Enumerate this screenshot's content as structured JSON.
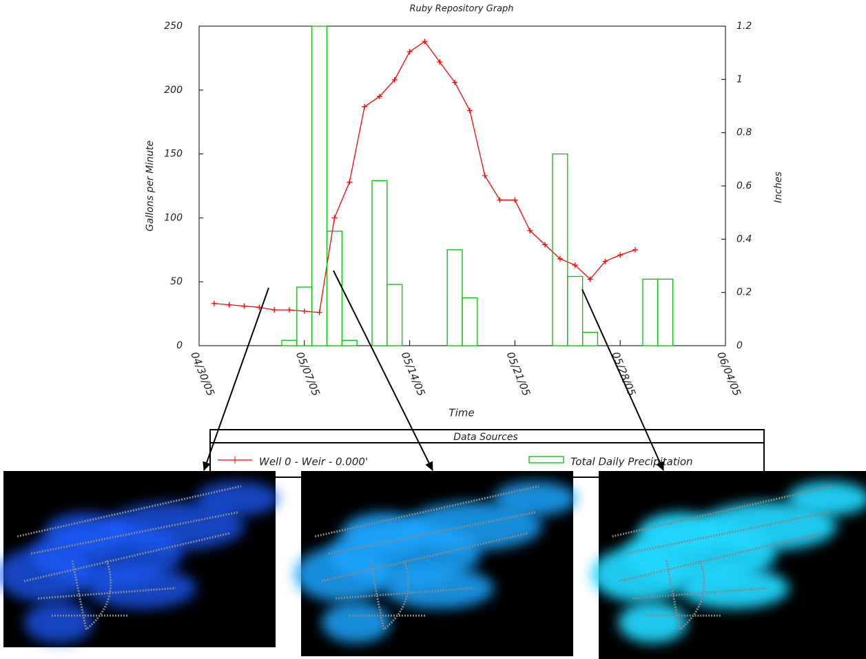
{
  "chart_data": {
    "type": "bar-line",
    "title": "Ruby Repository Graph",
    "x_label": "Time",
    "y_label": "Gallons per Minute",
    "y2_label": "Inches",
    "legend_title": "Data Sources",
    "xlim": [
      "04/30/05",
      "06/04/05"
    ],
    "xticks": [
      "04/30/05",
      "05/07/05",
      "05/14/05",
      "05/21/05",
      "05/28/05",
      "06/04/05"
    ],
    "ylim": [
      0,
      250
    ],
    "yticks": [
      0,
      50,
      100,
      150,
      200,
      250
    ],
    "y2lim": [
      0,
      1.2
    ],
    "y2ticks": [
      0,
      0.2,
      0.4,
      0.6,
      0.8,
      1,
      1.2
    ],
    "series": [
      {
        "name": "Well 0 - Weir - 0.000'",
        "type": "line",
        "color": "#ff0000",
        "x": [
          "05/01/05",
          "05/02/05",
          "05/03/05",
          "05/04/05",
          "05/05/05",
          "05/06/05",
          "05/07/05",
          "05/08/05",
          "05/09/05",
          "05/10/05",
          "05/11/05",
          "05/12/05",
          "05/13/05",
          "05/14/05",
          "05/15/05",
          "05/16/05",
          "05/17/05",
          "05/18/05",
          "05/19/05",
          "05/20/05",
          "05/21/05",
          "05/22/05",
          "05/23/05",
          "05/24/05",
          "05/25/05",
          "05/26/05",
          "05/27/05",
          "05/28/05",
          "05/29/05"
        ],
        "values": [
          33,
          32,
          31,
          30,
          28,
          28,
          27,
          26,
          100,
          128,
          187,
          195,
          208,
          230,
          238,
          222,
          206,
          184,
          133,
          114,
          114,
          90,
          79,
          68,
          63,
          52,
          66,
          71,
          75
        ]
      },
      {
        "name": "Total Daily Precipitation",
        "type": "bar",
        "axis": "y2",
        "color": "#00c000",
        "x": [
          "05/06/05",
          "05/07/05",
          "05/08/05",
          "05/09/05",
          "05/10/05",
          "05/12/05",
          "05/13/05",
          "05/17/05",
          "05/18/05",
          "05/24/05",
          "05/25/05",
          "05/26/05",
          "05/30/05",
          "05/31/05"
        ],
        "values": [
          0.02,
          0.22,
          1.2,
          0.43,
          0.02,
          0.62,
          0.23,
          0.36,
          0.18,
          0.72,
          0.26,
          0.05,
          0.25,
          0.25
        ]
      }
    ]
  }
}
